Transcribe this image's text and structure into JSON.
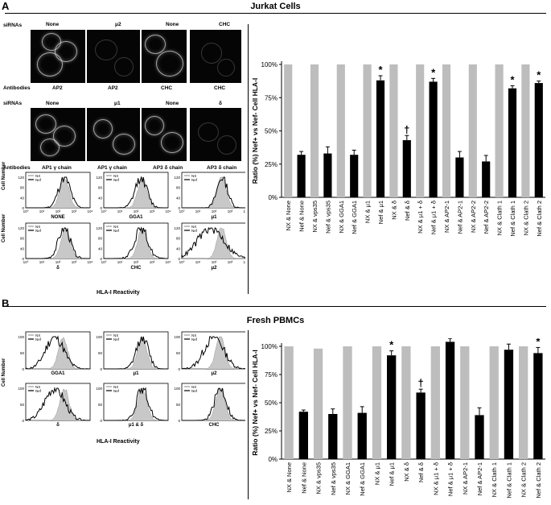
{
  "panel_a": {
    "letter": "A",
    "title": "Jurkat Cells",
    "row1": {
      "sirna_label": "siRNAs",
      "antibody_label": "Antibodies",
      "sirnas": [
        "None",
        "μ2",
        "None",
        "CHC"
      ],
      "antibodies": [
        "AP2",
        "AP2",
        "CHC",
        "CHC"
      ]
    },
    "row2": {
      "sirna_label": "siRNAs",
      "antibody_label": "Antibodies",
      "sirnas": [
        "None",
        "μ1",
        "None",
        "δ"
      ],
      "antibodies": [
        "AP1 γ chain",
        "AP1 γ chain",
        "AP3 δ chain",
        "AP3 δ chain"
      ]
    },
    "flow": {
      "y_label": "Cell Number",
      "x_label": "HLA-I Reactivity",
      "legend": [
        "NX",
        "Nef"
      ],
      "y_ticks": [
        "120",
        "80",
        "40",
        "0"
      ],
      "x_ticks": [
        "10⁰",
        "10¹",
        "10²",
        "10³",
        "10⁴"
      ],
      "plots": [
        "NONE",
        "GGA1",
        "μ1",
        "δ",
        "CHC",
        "μ2"
      ]
    }
  },
  "panel_b": {
    "letter": "B",
    "title": "Fresh PBMCs",
    "flow": {
      "y_label": "Cell Number",
      "x_label": "HLA-I Reactivity",
      "legend": [
        "NX",
        "Nef"
      ],
      "y_ticks": [
        "100",
        "50",
        "0"
      ],
      "plots": [
        "GGA1",
        "μ1",
        "μ2",
        "δ",
        "μ1 & δ",
        "CHC"
      ]
    }
  },
  "chart_data": [
    {
      "type": "bar",
      "panel": "A",
      "ylabel": "Ratio (%) Nef+ vs Nef- Cell HLA-I",
      "yticks": [
        "0%",
        "25%",
        "50%",
        "75%",
        "100%"
      ],
      "ylim": [
        0,
        100
      ],
      "categories": [
        "NX & None",
        "Nef & None",
        "NX & vps35",
        "Nef & vps35",
        "NX & GGA1",
        "Nef & GGA1",
        "NX & μ1",
        "Nef & μ1",
        "NX & δ",
        "Nef & δ",
        "NX & μ1 + δ",
        "Nef & μ1 + δ",
        "NX & AP2-1",
        "Nef & AP2-1",
        "NX & AP2-2",
        "Nef & AP2-2",
        "NX & Clath 1",
        "Nef & Clath 1",
        "NX & Clath 2",
        "Nef & Clath 2"
      ],
      "values": [
        100,
        32,
        100,
        33,
        100,
        32,
        100,
        88,
        100,
        43,
        100,
        87,
        100,
        30,
        100,
        27,
        100,
        82,
        100,
        86
      ],
      "errors": [
        0,
        2.5,
        0,
        5,
        0,
        3.5,
        0,
        3.5,
        0,
        3.5,
        0,
        2.5,
        0,
        4.5,
        0,
        4.5,
        0,
        2,
        0,
        1.5
      ],
      "colors": [
        "#bdbdbd",
        "#000000"
      ],
      "annotations": [
        "",
        "",
        "",
        "",
        "",
        "",
        "",
        "*",
        "",
        "†",
        "",
        "*",
        "",
        "",
        "",
        "",
        "",
        "*",
        "",
        "*"
      ]
    },
    {
      "type": "bar",
      "panel": "B",
      "ylabel": "Ratio (%) Nef+ vs Nef- Cell HLA-I",
      "yticks": [
        "0%",
        "25%",
        "50%",
        "75%",
        "100%"
      ],
      "ylim": [
        0,
        100
      ],
      "categories": [
        "NX & None",
        "Nef & None",
        "NX & vps35",
        "Nef & vps35",
        "NX & GGA1",
        "Nef & GGA1",
        "NX & μ1",
        "Nef & μ1",
        "NX & δ",
        "Nef & δ",
        "NX & μ1 + δ",
        "Nef & μ1 + δ",
        "NX & AP2-1",
        "Nef & AP2-1",
        "NX & Clath 1",
        "Nef & Clath 1",
        "NX & Clath 2",
        "Nef & Clath 2"
      ],
      "values": [
        100,
        42,
        98,
        40,
        100,
        41,
        100,
        92,
        100,
        59,
        100,
        104,
        100,
        39,
        100,
        97,
        100,
        94
      ],
      "errors": [
        0,
        1.5,
        0,
        4.5,
        0,
        5.5,
        0,
        4,
        0,
        3,
        0,
        3,
        0,
        6.5,
        0,
        5,
        0,
        5
      ],
      "colors": [
        "#bdbdbd",
        "#000000"
      ],
      "annotations": [
        "",
        "",
        "",
        "",
        "",
        "",
        "",
        "*",
        "",
        "†",
        "",
        "*",
        "",
        "",
        "",
        "*",
        "",
        "*"
      ]
    }
  ]
}
